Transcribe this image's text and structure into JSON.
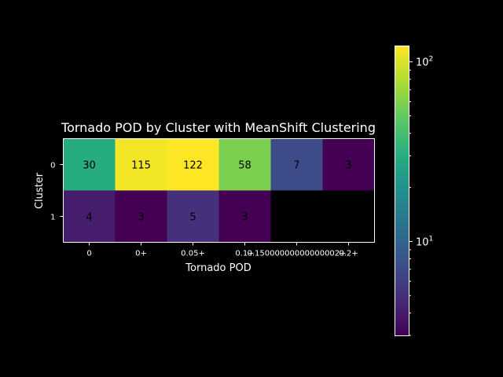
{
  "chart_data": {
    "type": "heatmap",
    "title": "Tornado POD by Cluster with MeanShift Clustering",
    "xlabel": "Tornado POD",
    "ylabel": "Cluster",
    "x_tick_labels": [
      "0",
      "0+",
      "0.05+",
      "0.1+",
      "0.15000000000000002+",
      "0.2+"
    ],
    "y_tick_labels": [
      "0",
      "1"
    ],
    "values": [
      [
        30,
        115,
        122,
        58,
        7,
        3
      ],
      [
        4,
        3,
        5,
        3,
        null,
        null
      ]
    ],
    "cell_labels": [
      [
        "30",
        "115",
        "122",
        "58",
        "7",
        "3"
      ],
      [
        "4",
        "3",
        "5",
        "3",
        "",
        ""
      ]
    ],
    "colormap": "viridis",
    "color_scale": "log",
    "color_range": [
      3,
      122
    ],
    "colorbar_ticks": [
      {
        "value": 100,
        "label": "10",
        "exp": "2"
      },
      {
        "value": 10,
        "label": "10",
        "exp": "1"
      }
    ],
    "missing_color": "#000000",
    "background": "#000000"
  }
}
